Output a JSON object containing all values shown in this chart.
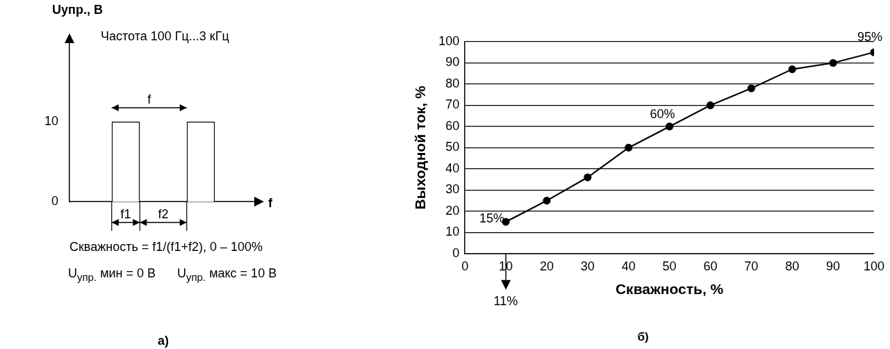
{
  "chart_data": [
    {
      "type": "bar",
      "title": "а)",
      "ylabel": "Uупр., В",
      "xlabel": "f",
      "categories": [
        null,
        null,
        null,
        null,
        null
      ],
      "values": [
        null,
        10,
        null,
        10,
        null
      ],
      "color": "#ffffff",
      "ylim": [
        0,
        20
      ],
      "yticks": [
        0,
        10
      ],
      "grid": false,
      "legend": false,
      "tick_labels": "y",
      "annotations": [
        "Частота 100 Гц...3 кГц",
        "f",
        "f1",
        "f2",
        "Скважность = f1/(f1+f2), 0 – 100%",
        "U$_{упр.}$ мин = 0 В",
        "U$_{упр.}$ макс = 10 В"
      ]
    },
    {
      "type": "line",
      "title": "б)",
      "xlabel": "Скважность, %",
      "ylabel": "Выходной ток, %",
      "x": [
        10,
        20,
        30,
        40,
        50,
        60,
        70,
        80,
        90,
        100
      ],
      "values": [
        15,
        25,
        36,
        50,
        60,
        70,
        78,
        87,
        90,
        95
      ],
      "color": "#000000",
      "xlim": [
        0,
        100
      ],
      "ylim": [
        0,
        100
      ],
      "xticks": [
        0,
        10,
        20,
        30,
        40,
        50,
        60,
        70,
        80,
        90,
        100
      ],
      "yticks": [
        0,
        10,
        20,
        30,
        40,
        50,
        60,
        70,
        80,
        90,
        100
      ],
      "grid": "y",
      "legend": false,
      "marker": "circle",
      "line_style": "solid",
      "annotations": [
        {
          "text": "15%",
          "x": 10,
          "y": 15
        },
        {
          "text": "60%",
          "x": 50,
          "y": 60
        },
        {
          "text": "95%",
          "x": 100,
          "y": 95
        },
        "11%"
      ]
    }
  ]
}
